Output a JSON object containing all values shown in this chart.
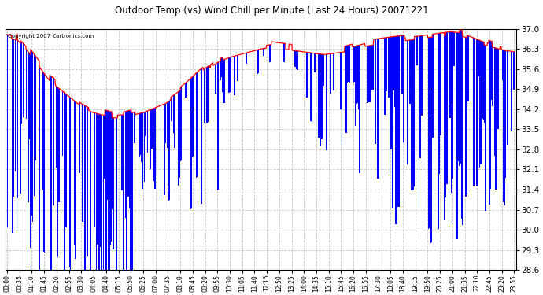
{
  "title": "Outdoor Temp (vs) Wind Chill per Minute (Last 24 Hours) 20071221",
  "copyright_text": "Copyright 2007 Cartronics.com",
  "bg_color": "#ffffff",
  "plot_bg_color": "#ffffff",
  "grid_color": "#c8c8c8",
  "bar_color": "#0000ff",
  "line_color": "#ff0000",
  "y_min": 28.6,
  "y_max": 37.0,
  "y_ticks": [
    28.6,
    29.3,
    30.0,
    30.7,
    31.4,
    32.1,
    32.8,
    33.5,
    34.2,
    34.9,
    35.6,
    36.3,
    37.0
  ],
  "x_tick_labels": [
    "00:00",
    "00:35",
    "01:10",
    "01:45",
    "02:20",
    "02:55",
    "03:30",
    "04:05",
    "04:40",
    "05:15",
    "05:50",
    "06:25",
    "07:00",
    "07:35",
    "08:10",
    "08:45",
    "09:20",
    "09:55",
    "10:30",
    "11:05",
    "11:40",
    "12:15",
    "12:50",
    "13:25",
    "14:00",
    "14:35",
    "15:10",
    "15:45",
    "16:20",
    "16:55",
    "17:30",
    "18:05",
    "18:40",
    "19:15",
    "19:50",
    "20:25",
    "21:00",
    "21:35",
    "22:10",
    "22:45",
    "23:20",
    "23:55"
  ],
  "n_minutes": 1440,
  "seed": 42,
  "figwidth": 6.9,
  "figheight": 3.75,
  "dpi": 100
}
